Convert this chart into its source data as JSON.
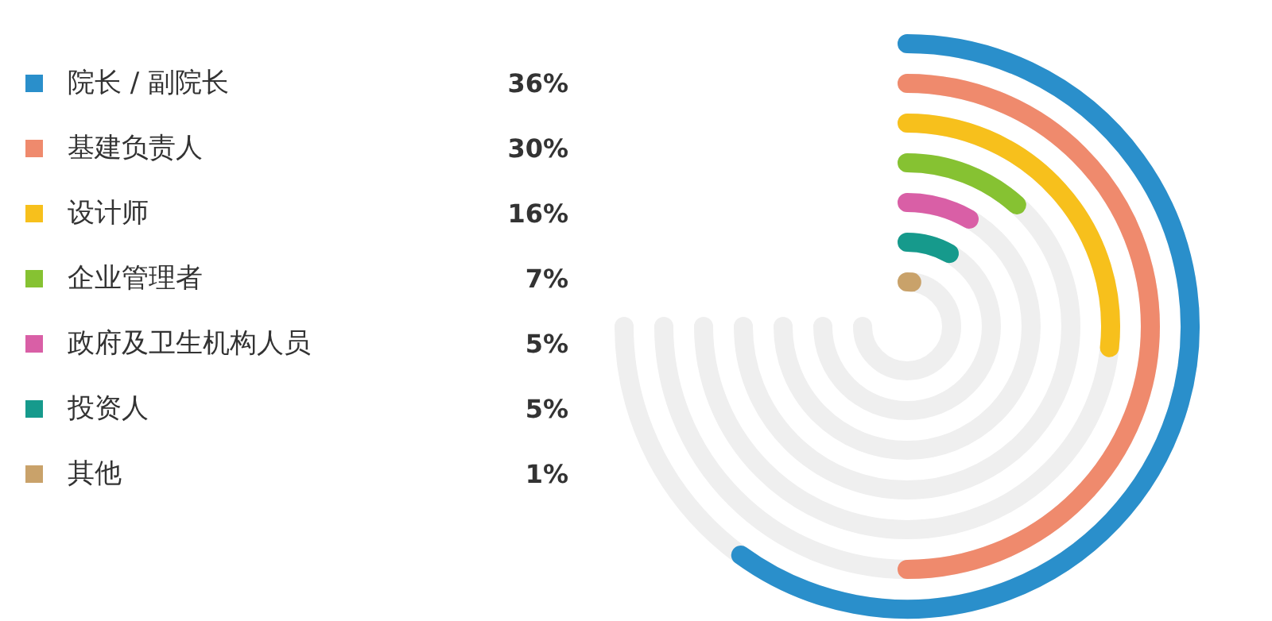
{
  "chart_data": {
    "type": "other",
    "categories": [
      "院长 / 副院长",
      "基建负责人",
      "设计师",
      "企业管理者",
      "政府及卫生机构人员",
      "投资人",
      "其他"
    ],
    "values": [
      36,
      30,
      16,
      7,
      5,
      5,
      1
    ],
    "value_labels": [
      "36%",
      "30%",
      "16%",
      "7%",
      "5%",
      "5%",
      "1%"
    ],
    "colors": [
      "#2a8fcb",
      "#ef8a6d",
      "#f7c01c",
      "#86c232",
      "#d95fa6",
      "#169a8c",
      "#c9a26a"
    ]
  }
}
